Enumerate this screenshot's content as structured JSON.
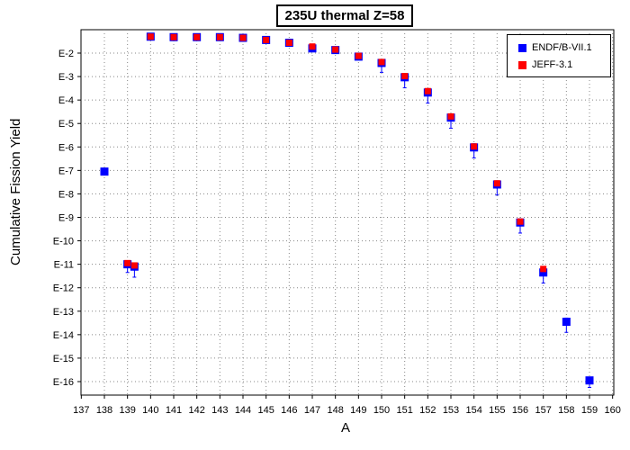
{
  "chart_data": {
    "type": "scatter",
    "title": "235U thermal Z=58",
    "xlabel": "A",
    "ylabel": "Cumulative Fission Yield",
    "xlim": [
      137,
      160
    ],
    "x_ticks": [
      137,
      138,
      139,
      140,
      141,
      142,
      143,
      144,
      145,
      146,
      147,
      148,
      149,
      150,
      151,
      152,
      153,
      154,
      155,
      156,
      157,
      158,
      159,
      160
    ],
    "yscale": "log",
    "y_ticks": [
      "E-2",
      "E-3",
      "E-4",
      "E-5",
      "E-6",
      "E-7",
      "E-8",
      "E-9",
      "E-10",
      "E-11",
      "E-12",
      "E-13",
      "E-14",
      "E-15",
      "E-16"
    ],
    "y_tick_exponents": [
      -2,
      -3,
      -4,
      -5,
      -6,
      -7,
      -8,
      -9,
      -10,
      -11,
      -12,
      -13,
      -14,
      -15,
      -16
    ],
    "ylim_exponent": [
      -16.6,
      -1.3
    ],
    "grid": true,
    "legend_position": "top-right",
    "series": [
      {
        "name": "ENDF/B-VII.1",
        "color": "#0000ff",
        "points": [
          {
            "x": 138,
            "log10y": -7.05
          },
          {
            "x": 139,
            "log10y": -11.0,
            "err": 0.35
          },
          {
            "x": 139.3,
            "log10y": -11.1,
            "err": 0.45
          },
          {
            "x": 140,
            "log10y": -1.3
          },
          {
            "x": 141,
            "log10y": -1.32
          },
          {
            "x": 142,
            "log10y": -1.32
          },
          {
            "x": 143,
            "log10y": -1.32
          },
          {
            "x": 144,
            "log10y": -1.35
          },
          {
            "x": 145,
            "log10y": -1.44
          },
          {
            "x": 146,
            "log10y": -1.56
          },
          {
            "x": 147,
            "log10y": -1.8,
            "err": 0.1
          },
          {
            "x": 148,
            "log10y": -1.87
          },
          {
            "x": 149,
            "log10y": -2.15
          },
          {
            "x": 150,
            "log10y": -2.42,
            "err": 0.4
          },
          {
            "x": 151,
            "log10y": -3.03,
            "err": 0.45
          },
          {
            "x": 152,
            "log10y": -3.68,
            "err": 0.45
          },
          {
            "x": 153,
            "log10y": -4.75,
            "err": 0.45
          },
          {
            "x": 154,
            "log10y": -6.02,
            "err": 0.45
          },
          {
            "x": 155,
            "log10y": -7.6,
            "err": 0.45
          },
          {
            "x": 156,
            "log10y": -9.22,
            "err": 0.45
          },
          {
            "x": 157,
            "log10y": -11.35,
            "err": 0.45
          },
          {
            "x": 158,
            "log10y": -13.45,
            "err": 0.45
          },
          {
            "x": 159,
            "log10y": -15.95,
            "err": 0.3
          }
        ]
      },
      {
        "name": "JEFF-3.1",
        "color": "#ff0000",
        "points": [
          {
            "x": 139,
            "log10y": -10.95
          },
          {
            "x": 139.3,
            "log10y": -11.05
          },
          {
            "x": 140,
            "log10y": -1.3
          },
          {
            "x": 141,
            "log10y": -1.32
          },
          {
            "x": 142,
            "log10y": -1.32
          },
          {
            "x": 143,
            "log10y": -1.32
          },
          {
            "x": 144,
            "log10y": -1.35
          },
          {
            "x": 145,
            "log10y": -1.44
          },
          {
            "x": 146,
            "log10y": -1.56
          },
          {
            "x": 147,
            "log10y": -1.72
          },
          {
            "x": 148,
            "log10y": -1.85
          },
          {
            "x": 149,
            "log10y": -2.12
          },
          {
            "x": 150,
            "log10y": -2.38
          },
          {
            "x": 151,
            "log10y": -2.98
          },
          {
            "x": 152,
            "log10y": -3.62
          },
          {
            "x": 153,
            "log10y": -4.7
          },
          {
            "x": 154,
            "log10y": -5.98
          },
          {
            "x": 155,
            "log10y": -7.55
          },
          {
            "x": 156,
            "log10y": -9.18
          },
          {
            "x": 157,
            "log10y": -11.2
          }
        ]
      }
    ]
  }
}
